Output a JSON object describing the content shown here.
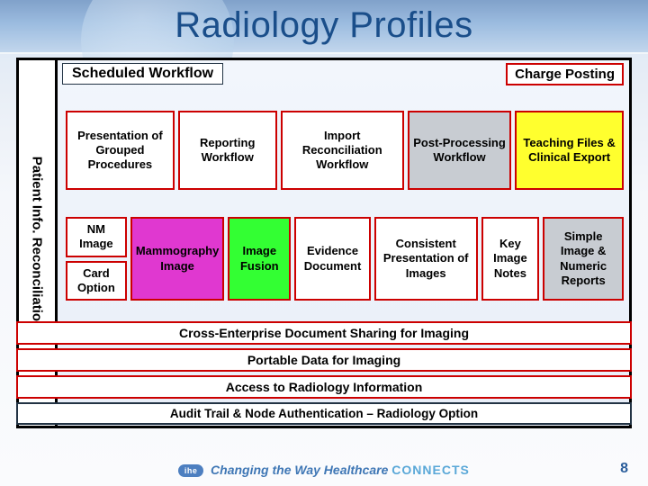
{
  "title": "Radiology Profiles",
  "sidebar_label": "Patient Info. Reconciliation",
  "scheduled_label": "Scheduled Workflow",
  "charge_label": "Charge Posting",
  "row1": [
    {
      "label": "Presentation of Grouped Procedures",
      "bg": "white"
    },
    {
      "label": "Reporting Workflow",
      "bg": "white"
    },
    {
      "label": "Import Reconciliation Workflow",
      "bg": "white"
    },
    {
      "label": "Post-Processing Workflow",
      "bg": "grey"
    },
    {
      "label": "Teaching Files & Clinical Export",
      "bg": "yellow"
    }
  ],
  "row2": [
    {
      "stack": [
        {
          "label": "NM Image",
          "bg": "white"
        },
        {
          "label": "Card Option",
          "bg": "white"
        }
      ]
    },
    {
      "label": "Mammography Image",
      "bg": "fuchsia"
    },
    {
      "label": "Image Fusion",
      "bg": "lime"
    },
    {
      "label": "Evidence Document",
      "bg": "white"
    },
    {
      "label": "Consistent Presentation of Images",
      "bg": "white"
    },
    {
      "label": "Key Image Notes",
      "bg": "white"
    },
    {
      "label": "Simple Image & Numeric Reports",
      "bg": "grey"
    }
  ],
  "bars": [
    {
      "label": "Cross-Enterprise Document Sharing for Imaging",
      "cls": "bar"
    },
    {
      "label": "Portable Data for Imaging",
      "cls": "bar"
    },
    {
      "label": "Access to Radiology Information",
      "cls": "bar"
    },
    {
      "label": "Audit Trail & Node Authentication – Radiology Option",
      "cls": "bar audit"
    }
  ],
  "footer": {
    "badge": "ihe",
    "tagline_a": "Changing the Way Healthcare ",
    "tagline_b": "CONNECTS"
  },
  "page_number": "8",
  "colors": {
    "border_red": "#c00",
    "border_dark": "#234",
    "title_color": "#1a4e8a",
    "fuchsia": "#e038d0",
    "lime": "#33ff33",
    "yellow": "#ffff2e",
    "grey": "#c8ccd2"
  }
}
